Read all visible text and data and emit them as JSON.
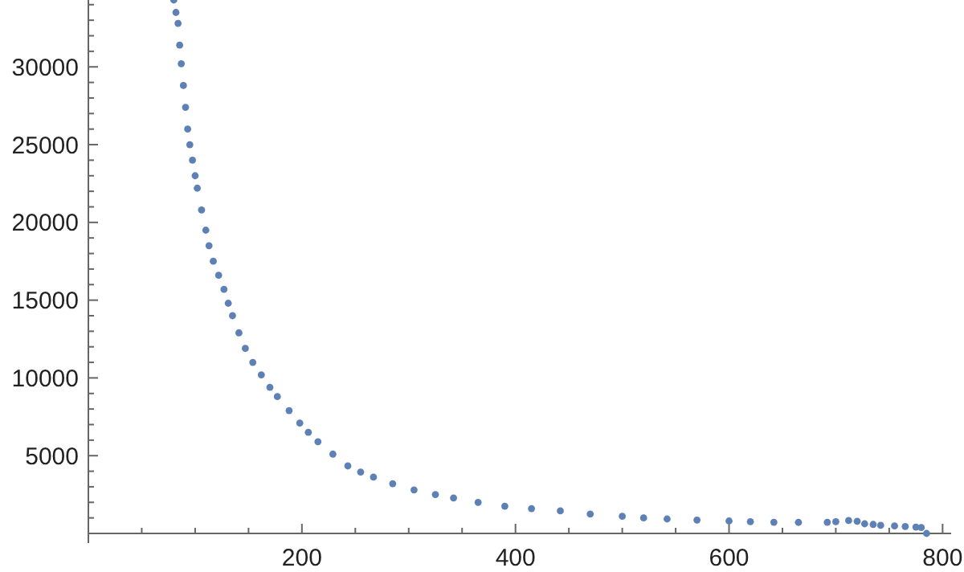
{
  "chart_data": {
    "type": "scatter",
    "marker": "circle",
    "grid": false,
    "xlim": [
      0,
      805
    ],
    "ylim": [
      0,
      34300
    ],
    "xticks": [
      {
        "value": 50,
        "label": null
      },
      {
        "value": 100,
        "label": null
      },
      {
        "value": 150,
        "label": null
      },
      200,
      {
        "value": 250,
        "label": null
      },
      {
        "value": 300,
        "label": null
      },
      {
        "value": 350,
        "label": null
      },
      400,
      {
        "value": 450,
        "label": null
      },
      {
        "value": 500,
        "label": null
      },
      {
        "value": 550,
        "label": null
      },
      600,
      {
        "value": 650,
        "label": null
      },
      {
        "value": 700,
        "label": null
      },
      {
        "value": 750,
        "label": null
      },
      800
    ],
    "yticks": [
      {
        "value": 1000,
        "label": null
      },
      {
        "value": 2000,
        "label": null
      },
      {
        "value": 3000,
        "label": null
      },
      {
        "value": 4000,
        "label": null
      },
      5000,
      {
        "value": 6000,
        "label": null
      },
      {
        "value": 7000,
        "label": null
      },
      {
        "value": 8000,
        "label": null
      },
      {
        "value": 9000,
        "label": null
      },
      10000,
      {
        "value": 11000,
        "label": null
      },
      {
        "value": 12000,
        "label": null
      },
      {
        "value": 13000,
        "label": null
      },
      {
        "value": 14000,
        "label": null
      },
      15000,
      {
        "value": 16000,
        "label": null
      },
      {
        "value": 17000,
        "label": null
      },
      {
        "value": 18000,
        "label": null
      },
      {
        "value": 19000,
        "label": null
      },
      20000,
      {
        "value": 21000,
        "label": null
      },
      {
        "value": 22000,
        "label": null
      },
      {
        "value": 23000,
        "label": null
      },
      {
        "value": 24000,
        "label": null
      },
      25000,
      {
        "value": 26000,
        "label": null
      },
      {
        "value": 27000,
        "label": null
      },
      {
        "value": 28000,
        "label": null
      },
      {
        "value": 29000,
        "label": null
      },
      30000,
      {
        "value": 31000,
        "label": null
      },
      {
        "value": 32000,
        "label": null
      },
      {
        "value": 33000,
        "label": null
      },
      {
        "value": 34000,
        "label": null
      }
    ],
    "series": [
      {
        "color": "#5e81b5",
        "x": [
          80,
          82,
          84,
          85.5,
          87,
          89,
          91,
          93,
          95,
          97.5,
          100,
          102,
          106,
          110,
          113,
          117,
          122,
          127,
          131,
          135,
          141,
          147,
          154,
          162,
          170,
          177,
          188,
          198,
          206,
          215,
          229,
          243,
          255,
          267,
          285,
          305,
          325,
          342,
          365,
          390,
          415,
          442,
          470,
          500,
          520,
          542,
          570,
          600,
          620,
          642,
          665,
          692,
          700,
          712,
          720,
          727,
          735,
          742,
          755,
          765,
          775,
          780,
          785
        ],
        "values": [
          34300,
          33500,
          32800,
          31400,
          30200,
          28800,
          27400,
          26000,
          25000,
          24000,
          23000,
          22200,
          20800,
          19500,
          18500,
          17500,
          16600,
          15700,
          14800,
          14000,
          12900,
          11900,
          11000,
          10200,
          9400,
          8800,
          7900,
          7100,
          6500,
          5900,
          5100,
          4340,
          3950,
          3620,
          3200,
          2800,
          2500,
          2280,
          2000,
          1750,
          1600,
          1450,
          1250,
          1100,
          1000,
          930,
          860,
          800,
          760,
          720,
          710,
          720,
          760,
          830,
          780,
          620,
          580,
          520,
          480,
          450,
          410,
          380,
          0
        ]
      }
    ]
  }
}
